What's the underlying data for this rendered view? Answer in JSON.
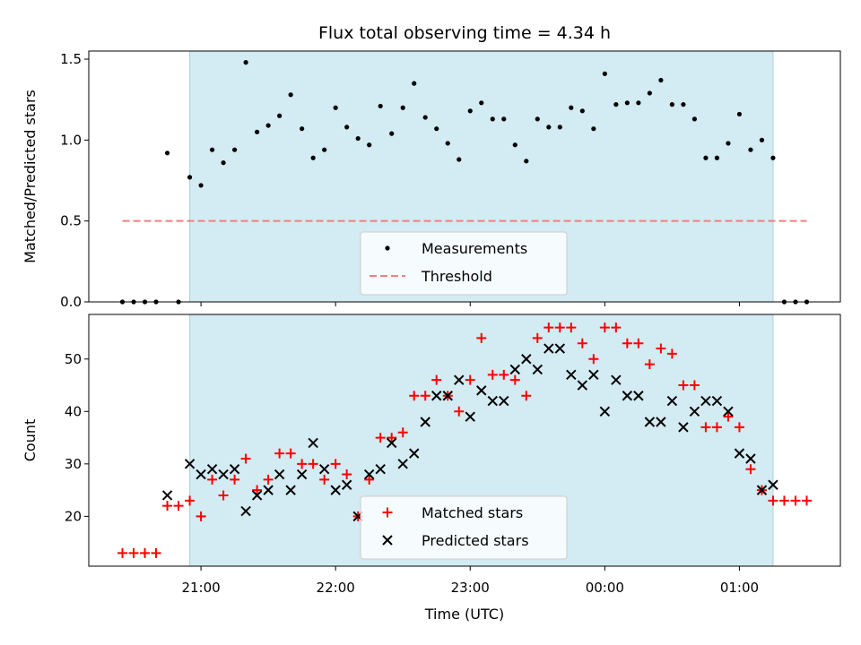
{
  "chart_data": [
    {
      "type": "scatter",
      "title": "Flux total observing time = 4.34 h",
      "xlabel": "",
      "ylabel": "Matched/Predicted stars",
      "xlim": [
        "20:10",
        "01:45"
      ],
      "ylim": [
        0,
        1.55
      ],
      "yticks": [
        0.0,
        0.5,
        1.0,
        1.5
      ],
      "ytick_labels": [
        "0.0",
        "0.5",
        "1.0",
        "1.5"
      ],
      "xticks": [
        "21:00",
        "22:00",
        "23:00",
        "00:00",
        "01:00"
      ],
      "shaded_range": [
        "20:55",
        "01:15"
      ],
      "shade_color": "#d3ebf2",
      "legend": {
        "placement": "lower-center",
        "entries": [
          {
            "label": "Measurements",
            "marker": "dot",
            "color": "#000000"
          },
          {
            "label": "Threshold",
            "marker": "dashed-line",
            "color": "#f08080"
          }
        ]
      },
      "threshold": {
        "y": 0.5,
        "x_range": [
          "20:25",
          "01:30"
        ],
        "color": "#f08080"
      },
      "series": [
        {
          "name": "Measurements",
          "color": "#000000",
          "points": [
            [
              "20:25",
              0.0
            ],
            [
              "20:30",
              0.0
            ],
            [
              "20:35",
              0.0
            ],
            [
              "20:40",
              0.0
            ],
            [
              "20:45",
              0.92
            ],
            [
              "20:50",
              0.0
            ],
            [
              "20:55",
              0.77
            ],
            [
              "21:00",
              0.72
            ],
            [
              "21:05",
              0.94
            ],
            [
              "21:10",
              0.86
            ],
            [
              "21:15",
              0.94
            ],
            [
              "21:20",
              1.48
            ],
            [
              "21:25",
              1.05
            ],
            [
              "21:30",
              1.09
            ],
            [
              "21:35",
              1.15
            ],
            [
              "21:40",
              1.28
            ],
            [
              "21:45",
              1.07
            ],
            [
              "21:50",
              0.89
            ],
            [
              "21:55",
              0.94
            ],
            [
              "22:00",
              1.2
            ],
            [
              "22:05",
              1.08
            ],
            [
              "22:10",
              1.01
            ],
            [
              "22:15",
              0.97
            ],
            [
              "22:20",
              1.21
            ],
            [
              "22:25",
              1.04
            ],
            [
              "22:30",
              1.2
            ],
            [
              "22:35",
              1.35
            ],
            [
              "22:40",
              1.14
            ],
            [
              "22:45",
              1.07
            ],
            [
              "22:50",
              0.98
            ],
            [
              "22:55",
              0.88
            ],
            [
              "23:00",
              1.18
            ],
            [
              "23:05",
              1.23
            ],
            [
              "23:10",
              1.13
            ],
            [
              "23:15",
              1.13
            ],
            [
              "23:20",
              0.97
            ],
            [
              "23:25",
              0.87
            ],
            [
              "23:30",
              1.13
            ],
            [
              "23:35",
              1.08
            ],
            [
              "23:40",
              1.08
            ],
            [
              "23:45",
              1.2
            ],
            [
              "23:50",
              1.18
            ],
            [
              "23:55",
              1.07
            ],
            [
              "00:00",
              1.41
            ],
            [
              "00:05",
              1.22
            ],
            [
              "00:10",
              1.23
            ],
            [
              "00:15",
              1.23
            ],
            [
              "00:20",
              1.29
            ],
            [
              "00:25",
              1.37
            ],
            [
              "00:30",
              1.22
            ],
            [
              "00:35",
              1.22
            ],
            [
              "00:40",
              1.13
            ],
            [
              "00:45",
              0.89
            ],
            [
              "00:50",
              0.89
            ],
            [
              "00:55",
              0.98
            ],
            [
              "01:00",
              1.16
            ],
            [
              "01:05",
              0.94
            ],
            [
              "01:10",
              1.0
            ],
            [
              "01:15",
              0.89
            ],
            [
              "01:20",
              0.0
            ],
            [
              "01:25",
              0.0
            ],
            [
              "01:30",
              0.0
            ]
          ]
        }
      ]
    },
    {
      "type": "scatter",
      "title": "",
      "xlabel": "Time (UTC)",
      "ylabel": "Count",
      "xlim": [
        "20:10",
        "01:45"
      ],
      "ylim": [
        10.5,
        58.5
      ],
      "yticks": [
        20,
        30,
        40,
        50
      ],
      "ytick_labels": [
        "20",
        "30",
        "40",
        "50"
      ],
      "xticks": [
        "21:00",
        "22:00",
        "23:00",
        "00:00",
        "01:00"
      ],
      "shaded_range": [
        "20:55",
        "01:15"
      ],
      "shade_color": "#d3ebf2",
      "legend": {
        "placement": "lower-center",
        "entries": [
          {
            "label": "Matched stars",
            "marker": "plus",
            "color": "#ff0000"
          },
          {
            "label": "Predicted stars",
            "marker": "x",
            "color": "#000000"
          }
        ]
      },
      "series": [
        {
          "name": "Matched stars",
          "marker": "plus",
          "color": "#ff0000",
          "points": [
            [
              "20:25",
              13
            ],
            [
              "20:30",
              13
            ],
            [
              "20:35",
              13
            ],
            [
              "20:40",
              13
            ],
            [
              "20:45",
              22
            ],
            [
              "20:50",
              22
            ],
            [
              "20:55",
              23
            ],
            [
              "21:00",
              20
            ],
            [
              "21:05",
              27
            ],
            [
              "21:10",
              24
            ],
            [
              "21:15",
              27
            ],
            [
              "21:20",
              31
            ],
            [
              "21:25",
              25
            ],
            [
              "21:30",
              27
            ],
            [
              "21:35",
              32
            ],
            [
              "21:40",
              32
            ],
            [
              "21:45",
              30
            ],
            [
              "21:50",
              30
            ],
            [
              "21:55",
              27
            ],
            [
              "22:00",
              30
            ],
            [
              "22:05",
              28
            ],
            [
              "22:10",
              20
            ],
            [
              "22:15",
              27
            ],
            [
              "22:20",
              35
            ],
            [
              "22:25",
              35
            ],
            [
              "22:30",
              36
            ],
            [
              "22:35",
              43
            ],
            [
              "22:40",
              43
            ],
            [
              "22:45",
              46
            ],
            [
              "22:50",
              43
            ],
            [
              "22:55",
              40
            ],
            [
              "23:00",
              46
            ],
            [
              "23:05",
              54
            ],
            [
              "23:10",
              47
            ],
            [
              "23:15",
              47
            ],
            [
              "23:20",
              46
            ],
            [
              "23:25",
              43
            ],
            [
              "23:30",
              54
            ],
            [
              "23:35",
              56
            ],
            [
              "23:40",
              56
            ],
            [
              "23:45",
              56
            ],
            [
              "23:50",
              53
            ],
            [
              "23:55",
              50
            ],
            [
              "00:00",
              56
            ],
            [
              "00:05",
              56
            ],
            [
              "00:10",
              53
            ],
            [
              "00:15",
              53
            ],
            [
              "00:20",
              49
            ],
            [
              "00:25",
              52
            ],
            [
              "00:30",
              51
            ],
            [
              "00:35",
              45
            ],
            [
              "00:40",
              45
            ],
            [
              "00:45",
              37
            ],
            [
              "00:50",
              37
            ],
            [
              "00:55",
              39
            ],
            [
              "01:00",
              37
            ],
            [
              "01:05",
              29
            ],
            [
              "01:10",
              25
            ],
            [
              "01:15",
              23
            ],
            [
              "01:20",
              23
            ],
            [
              "01:25",
              23
            ],
            [
              "01:30",
              23
            ]
          ]
        },
        {
          "name": "Predicted stars",
          "marker": "x",
          "color": "#000000",
          "points": [
            [
              "20:45",
              24
            ],
            [
              "20:55",
              30
            ],
            [
              "21:00",
              28
            ],
            [
              "21:05",
              29
            ],
            [
              "21:10",
              28
            ],
            [
              "21:15",
              29
            ],
            [
              "21:20",
              21
            ],
            [
              "21:25",
              24
            ],
            [
              "21:30",
              25
            ],
            [
              "21:35",
              28
            ],
            [
              "21:40",
              25
            ],
            [
              "21:45",
              28
            ],
            [
              "21:50",
              34
            ],
            [
              "21:55",
              29
            ],
            [
              "22:00",
              25
            ],
            [
              "22:05",
              26
            ],
            [
              "22:10",
              20
            ],
            [
              "22:15",
              28
            ],
            [
              "22:20",
              29
            ],
            [
              "22:25",
              34
            ],
            [
              "22:30",
              30
            ],
            [
              "22:35",
              32
            ],
            [
              "22:40",
              38
            ],
            [
              "22:45",
              43
            ],
            [
              "22:50",
              43
            ],
            [
              "22:55",
              46
            ],
            [
              "23:00",
              39
            ],
            [
              "23:05",
              44
            ],
            [
              "23:10",
              42
            ],
            [
              "23:15",
              42
            ],
            [
              "23:20",
              48
            ],
            [
              "23:25",
              50
            ],
            [
              "23:30",
              48
            ],
            [
              "23:35",
              52
            ],
            [
              "23:40",
              52
            ],
            [
              "23:45",
              47
            ],
            [
              "23:50",
              45
            ],
            [
              "23:55",
              47
            ],
            [
              "00:00",
              40
            ],
            [
              "00:05",
              46
            ],
            [
              "00:10",
              43
            ],
            [
              "00:15",
              43
            ],
            [
              "00:20",
              38
            ],
            [
              "00:25",
              38
            ],
            [
              "00:30",
              42
            ],
            [
              "00:35",
              37
            ],
            [
              "00:40",
              40
            ],
            [
              "00:45",
              42
            ],
            [
              "00:50",
              42
            ],
            [
              "00:55",
              40
            ],
            [
              "01:00",
              32
            ],
            [
              "01:05",
              31
            ],
            [
              "01:10",
              25
            ],
            [
              "01:15",
              26
            ]
          ]
        }
      ]
    }
  ]
}
